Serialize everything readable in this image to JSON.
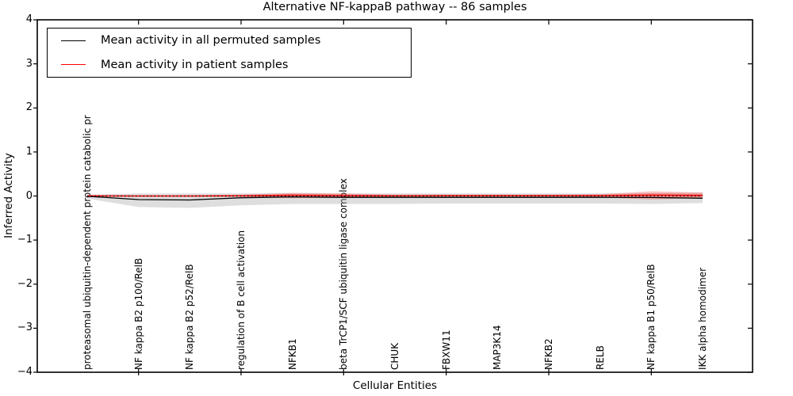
{
  "title": "Alternative NF-kappaB pathway -- 86 samples",
  "legend": {
    "items": [
      {
        "label": "Mean activity in all permuted samples",
        "color": "#000000"
      },
      {
        "label": "Mean activity in patient samples",
        "color": "#ff0000"
      }
    ]
  },
  "chart_data": {
    "type": "line",
    "title": "Alternative NF-kappaB pathway -- 86 samples",
    "xlabel": "Cellular Entities",
    "ylabel": "Inferred Activity",
    "ylim": [
      -4,
      4
    ],
    "yticks": [
      4,
      3,
      2,
      1,
      0,
      -1,
      -2,
      -3,
      -4
    ],
    "grid": false,
    "legend_position": "upper left",
    "categories": [
      "proteasomal ubiquitin-dependent protein catabolic pr",
      "NF kappa B2 p100/RelB",
      "NF kappa B2 p52/RelB",
      "regulation of B cell activation",
      "NFKB1",
      "beta TrCP1/SCF ubiquitin ligase complex",
      "CHUK",
      "FBXW11",
      "MAP3K14",
      "NFKB2",
      "RELB",
      "NF kappa B1 p50/RelB",
      "IKK alpha homodimer"
    ],
    "series": [
      {
        "name": "Mean activity in all permuted samples",
        "color": "#000000",
        "values": [
          -0.005,
          -0.08,
          -0.09,
          -0.04,
          -0.02,
          -0.03,
          -0.03,
          -0.03,
          -0.03,
          -0.03,
          -0.03,
          -0.035,
          -0.05
        ]
      },
      {
        "name": "Mean activity in patient samples",
        "color": "#ff0000",
        "values": [
          0.005,
          0.0,
          0.0,
          0.005,
          0.02,
          0.01,
          0.005,
          0.01,
          0.01,
          0.01,
          0.01,
          0.02,
          0.015
        ]
      }
    ],
    "bands": [
      {
        "name": "permuted-samples-range",
        "color": "rgba(160,160,160,0.35)",
        "upper": [
          0.03,
          0.06,
          0.06,
          0.06,
          0.07,
          0.06,
          0.06,
          0.06,
          0.06,
          0.06,
          0.06,
          0.07,
          0.08
        ],
        "lower": [
          -0.06,
          -0.25,
          -0.27,
          -0.21,
          -0.18,
          -0.18,
          -0.18,
          -0.17,
          -0.17,
          -0.17,
          -0.17,
          -0.18,
          -0.16
        ]
      },
      {
        "name": "patient-samples-range",
        "color": "rgba(255,0,0,0.22)",
        "upper": [
          0.02,
          0.02,
          0.02,
          0.03,
          0.07,
          0.06,
          0.03,
          0.03,
          0.03,
          0.03,
          0.04,
          0.11,
          0.08
        ],
        "lower": [
          -0.02,
          -0.02,
          -0.02,
          -0.02,
          -0.05,
          -0.04,
          -0.02,
          -0.02,
          -0.02,
          -0.02,
          -0.03,
          -0.08,
          -0.04
        ]
      }
    ],
    "zero_line": {
      "y": 0,
      "style": "dotted",
      "color": "#000000"
    }
  }
}
